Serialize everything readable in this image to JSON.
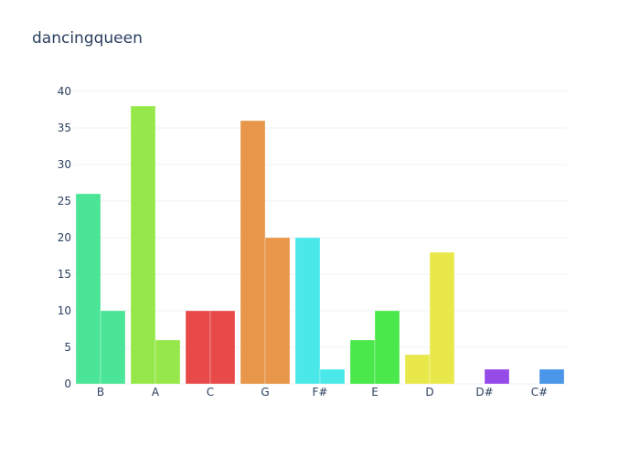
{
  "chart_data": {
    "type": "bar",
    "title": "dancingqueen",
    "categories": [
      "B",
      "A",
      "C",
      "G",
      "F#",
      "E",
      "D",
      "D#",
      "C#"
    ],
    "series": [
      {
        "values": [
          26,
          38,
          10,
          36,
          20,
          6,
          4,
          0,
          0
        ]
      },
      {
        "values": [
          10,
          6,
          10,
          20,
          2,
          10,
          18,
          2,
          2
        ]
      }
    ],
    "colors": [
      "#4ae596",
      "#96e84a",
      "#e84a4a",
      "#e8964a",
      "#4ae8e8",
      "#4ae84a",
      "#e8e84a",
      "#964ae8",
      "#4a96e8"
    ],
    "ylim": [
      0,
      40
    ],
    "yticks": [
      0,
      5,
      10,
      15,
      20,
      25,
      30,
      35,
      40
    ],
    "grid": true,
    "legend": false
  }
}
